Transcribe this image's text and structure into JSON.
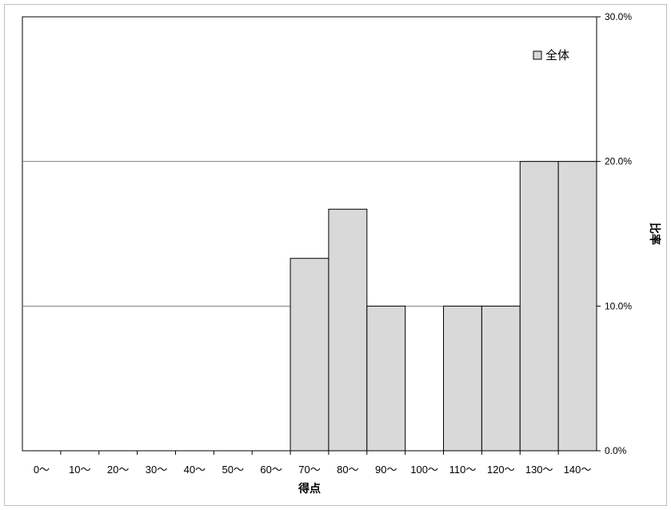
{
  "chart_data": {
    "type": "bar",
    "categories": [
      "0〜",
      "10〜",
      "20〜",
      "30〜",
      "40〜",
      "50〜",
      "60〜",
      "70〜",
      "80〜",
      "90〜",
      "100〜",
      "110〜",
      "120〜",
      "130〜",
      "140〜"
    ],
    "series": [
      {
        "name": "全体",
        "values": [
          0,
          0,
          0,
          0,
          0,
          0,
          0,
          13.3,
          16.7,
          10.0,
          0,
          10.0,
          10.0,
          20.0,
          20.0
        ]
      }
    ],
    "xlabel": "得点",
    "ylabel": "比率",
    "ylim": [
      0,
      30
    ],
    "yticks": [
      "0.0%",
      "10.0%",
      "20.0%",
      "30.0%"
    ],
    "ytick_values": [
      0,
      10,
      20,
      30
    ],
    "y_axis_side": "right",
    "grid": true,
    "legend_position": "top-right",
    "colors": {
      "bar_fill": "#d9d9d9",
      "bar_stroke": "#000000",
      "grid": "#808080",
      "axis": "#000000"
    }
  }
}
